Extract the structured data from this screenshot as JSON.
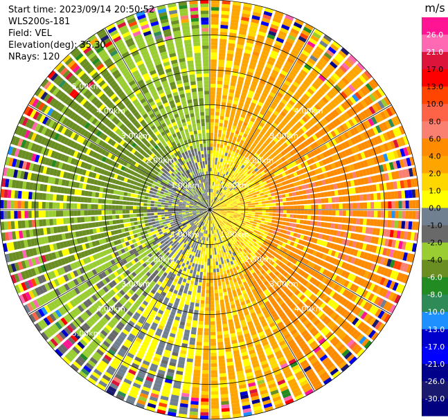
{
  "chart_data": {
    "type": "ppi",
    "header": {
      "start_time": "Start time: 2023/09/14 20:50:52",
      "instrument": "WLS200s-181",
      "field": "Field: VEL",
      "elevation": "Elevation(deg): 35.30",
      "nrays": "NRays: 120"
    },
    "n_rays": 120,
    "max_range_km": 6.0,
    "range_rings_km": [
      1,
      2,
      3,
      4,
      5,
      6
    ],
    "radial_spokes_deg": [
      0,
      30,
      60,
      90,
      120,
      150,
      180,
      210,
      240,
      270,
      300,
      330
    ],
    "range_labels": [
      {
        "text": "1.00km",
        "range_km": 1,
        "az_deg": 315
      },
      {
        "text": "2.00km",
        "range_km": 2,
        "az_deg": 315
      },
      {
        "text": "3.00km",
        "range_km": 3,
        "az_deg": 315
      },
      {
        "text": "4.00km",
        "range_km": 4,
        "az_deg": 315
      },
      {
        "text": "5.00km",
        "range_km": 5,
        "az_deg": 315
      },
      {
        "text": "1.00km",
        "range_km": 1,
        "az_deg": 45
      },
      {
        "text": "2.00km",
        "range_km": 2,
        "az_deg": 45
      },
      {
        "text": "3.00km",
        "range_km": 3,
        "az_deg": 45
      },
      {
        "text": "4.00km",
        "range_km": 4,
        "az_deg": 45
      },
      {
        "text": "1.00km",
        "range_km": 1,
        "az_deg": 135
      },
      {
        "text": "2.00km",
        "range_km": 2,
        "az_deg": 135
      },
      {
        "text": "3.00km",
        "range_km": 3,
        "az_deg": 135
      },
      {
        "text": "4.00km",
        "range_km": 4,
        "az_deg": 135
      },
      {
        "text": "1.00km",
        "range_km": 1,
        "az_deg": 225
      },
      {
        "text": "2.00km",
        "range_km": 2,
        "az_deg": 225
      },
      {
        "text": "3.00km",
        "range_km": 3,
        "az_deg": 225
      },
      {
        "text": "4.00km",
        "range_km": 4,
        "az_deg": 225
      },
      {
        "text": "5.00km",
        "range_km": 5,
        "az_deg": 225
      }
    ],
    "sectors": [
      {
        "az_from": 0,
        "az_to": 15,
        "velocity": 2.5
      },
      {
        "az_from": 15,
        "az_to": 50,
        "velocity": 3.0
      },
      {
        "az_from": 50,
        "az_to": 75,
        "velocity": 4.5
      },
      {
        "az_from": 75,
        "az_to": 110,
        "velocity": 5.5
      },
      {
        "az_from": 110,
        "az_to": 150,
        "velocity": 4.5
      },
      {
        "az_from": 150,
        "az_to": 185,
        "velocity": 2.5
      },
      {
        "az_from": 185,
        "az_to": 215,
        "velocity": 0.0
      },
      {
        "az_from": 215,
        "az_to": 250,
        "velocity": -2.5
      },
      {
        "az_from": 250,
        "az_to": 285,
        "velocity": -4.5
      },
      {
        "az_from": 285,
        "az_to": 325,
        "velocity": -5.0
      },
      {
        "az_from": 325,
        "az_to": 360,
        "velocity": -3.5
      }
    ],
    "colorbar": {
      "unit": "m/s",
      "ticks": [
        "26.0",
        "21.0",
        "17.0",
        "13.0",
        "10.0",
        "8.0",
        "6.0",
        "4.0",
        "2.0",
        "1.0",
        "0.0",
        "-1.0",
        "-2.0",
        "-4.0",
        "-6.0",
        "-8.0",
        "-10.0",
        "-13.0",
        "-17.0",
        "-21.0",
        "-26.0",
        "-30.0"
      ],
      "colors": [
        "#ff1493",
        "#ff69b4",
        "#dc143c",
        "#ff0000",
        "#ff4500",
        "#ff6347",
        "#fa8072",
        "#ff8c00",
        "#ffa500",
        "#ffd700",
        "#ffff00",
        "#708090",
        "#696969",
        "#9acd32",
        "#6b8e23",
        "#228b22",
        "#2e8b57",
        "#1e90ff",
        "#0000cd",
        "#0000ff",
        "#00008b",
        "#191970",
        "#000080"
      ]
    }
  }
}
